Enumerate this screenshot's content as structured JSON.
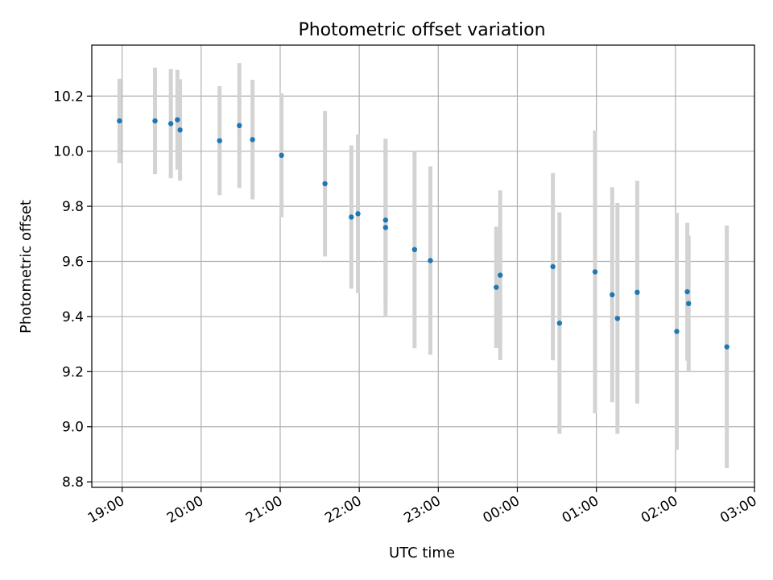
{
  "chart_data": {
    "type": "scatter",
    "title": "Photometric offset variation",
    "xlabel": "UTC time",
    "ylabel": "Photometric offset",
    "grid": true,
    "ylim": [
      8.78,
      10.385
    ],
    "xlim": [
      "18:37",
      "03:00"
    ],
    "x_ticks": [
      "19:00",
      "20:00",
      "21:00",
      "22:00",
      "23:00",
      "00:00",
      "01:00",
      "02:00",
      "03:00"
    ],
    "y_ticks": [
      "8.8",
      "9.0",
      "9.2",
      "9.4",
      "9.6",
      "9.8",
      "10.0",
      "10.2"
    ],
    "point_color": "#1f77b4",
    "errorbar_color": "#d3d3d3",
    "points": [
      {
        "x": "18:58",
        "y": 10.11,
        "err": 0.153
      },
      {
        "x": "19:25",
        "y": 10.11,
        "err": 0.193
      },
      {
        "x": "19:37",
        "y": 10.1,
        "err": 0.198
      },
      {
        "x": "19:42",
        "y": 10.114,
        "err": 0.181
      },
      {
        "x": "19:44",
        "y": 10.077,
        "err": 0.184
      },
      {
        "x": "20:14",
        "y": 10.038,
        "err": 0.198
      },
      {
        "x": "20:29",
        "y": 10.093,
        "err": 0.227
      },
      {
        "x": "20:39",
        "y": 10.042,
        "err": 0.217
      },
      {
        "x": "21:01",
        "y": 9.985,
        "err": 0.225
      },
      {
        "x": "21:34",
        "y": 9.882,
        "err": 0.264
      },
      {
        "x": "21:54",
        "y": 9.761,
        "err": 0.26
      },
      {
        "x": "21:59",
        "y": 9.773,
        "err": 0.288
      },
      {
        "x": "22:20",
        "y": 9.723,
        "err": 0.32
      },
      {
        "x": "22:20",
        "y": 9.75,
        "err": 0.295
      },
      {
        "x": "22:42",
        "y": 9.643,
        "err": 0.358
      },
      {
        "x": "22:54",
        "y": 9.603,
        "err": 0.342
      },
      {
        "x": "23:44",
        "y": 9.506,
        "err": 0.22
      },
      {
        "x": "23:47",
        "y": 9.55,
        "err": 0.308
      },
      {
        "x": "00:27",
        "y": 9.581,
        "err": 0.34
      },
      {
        "x": "00:32",
        "y": 9.376,
        "err": 0.402
      },
      {
        "x": "00:59",
        "y": 9.562,
        "err": 0.513
      },
      {
        "x": "01:12",
        "y": 9.479,
        "err": 0.39
      },
      {
        "x": "01:16",
        "y": 9.393,
        "err": 0.419
      },
      {
        "x": "01:31",
        "y": 9.488,
        "err": 0.404
      },
      {
        "x": "02:01",
        "y": 9.346,
        "err": 0.43
      },
      {
        "x": "02:09",
        "y": 9.49,
        "err": 0.25
      },
      {
        "x": "02:10",
        "y": 9.447,
        "err": 0.247
      },
      {
        "x": "02:39",
        "y": 9.29,
        "err": 0.44
      }
    ]
  }
}
